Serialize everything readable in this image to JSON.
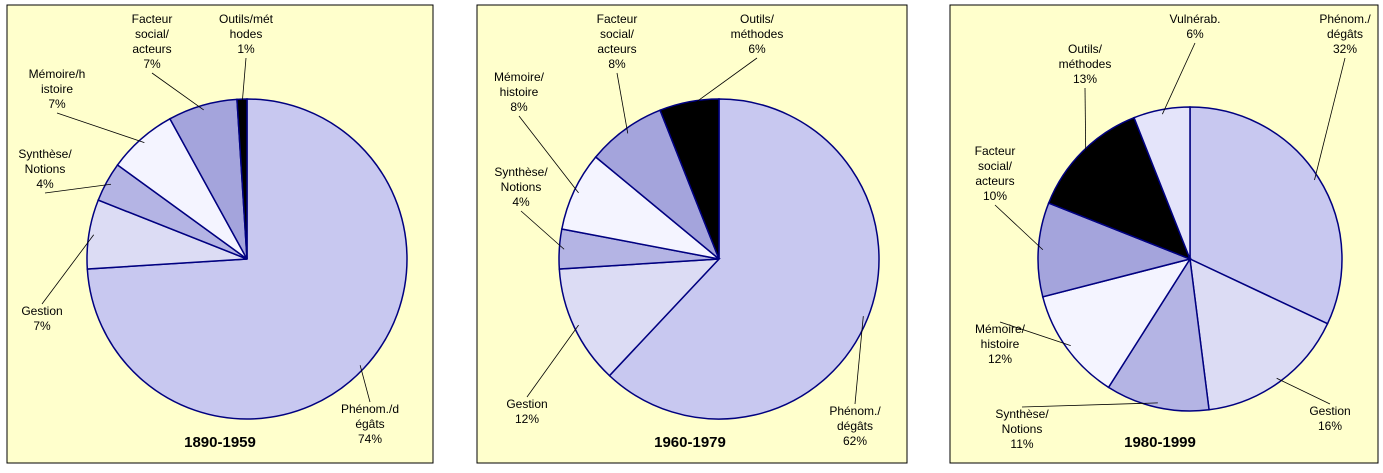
{
  "chart_data": [
    {
      "type": "pie",
      "title": "1890-1959",
      "categories": [
        [
          "Phénom./d",
          "égâts"
        ],
        [
          "Gestion"
        ],
        [
          "Synthèse/",
          "Notions"
        ],
        [
          "Mémoire/h",
          "istoire"
        ],
        [
          "Facteur",
          "social/",
          "acteurs"
        ],
        [
          "Outils/mét",
          "hodes"
        ]
      ],
      "values": [
        74,
        7,
        4,
        7,
        7,
        1
      ],
      "value_labels": [
        "74%",
        "7%",
        "4%",
        "7%",
        "7%",
        "1%"
      ],
      "colors": [
        "#c8c8f0",
        "#dcdcf4",
        "#b4b4e4",
        "#f4f4ff",
        "#a4a4dc",
        "#000000"
      ]
    },
    {
      "type": "pie",
      "title": "1960-1979",
      "categories": [
        [
          "Phénom./",
          "dégâts"
        ],
        [
          "Gestion"
        ],
        [
          "Synthèse/",
          "Notions"
        ],
        [
          "Mémoire/",
          "histoire"
        ],
        [
          "Facteur",
          "social/",
          "acteurs"
        ],
        [
          "Outils/",
          "méthodes"
        ]
      ],
      "values": [
        62,
        12,
        4,
        8,
        8,
        6
      ],
      "value_labels": [
        "62%",
        "12%",
        "4%",
        "8%",
        "8%",
        "6%"
      ],
      "colors": [
        "#c8c8f0",
        "#dcdcf4",
        "#b4b4e4",
        "#f4f4ff",
        "#a4a4dc",
        "#000000"
      ]
    },
    {
      "type": "pie",
      "title": "1980-1999",
      "categories": [
        [
          "Phénom./",
          "dégâts"
        ],
        [
          "Gestion"
        ],
        [
          "Synthèse/",
          "Notions"
        ],
        [
          "Mémoire/",
          "histoire"
        ],
        [
          "Facteur",
          "social/",
          "acteurs"
        ],
        [
          "Outils/",
          "méthodes"
        ],
        [
          "Vulnérab."
        ]
      ],
      "values": [
        32,
        16,
        11,
        12,
        10,
        13,
        6
      ],
      "value_labels": [
        "32%",
        "16%",
        "11%",
        "12%",
        "10%",
        "13%",
        "6%"
      ],
      "colors": [
        "#c8c8f0",
        "#dcdcf4",
        "#b4b4e4",
        "#f4f4ff",
        "#a4a4dc",
        "#000000",
        "#e4e4fa"
      ]
    }
  ]
}
